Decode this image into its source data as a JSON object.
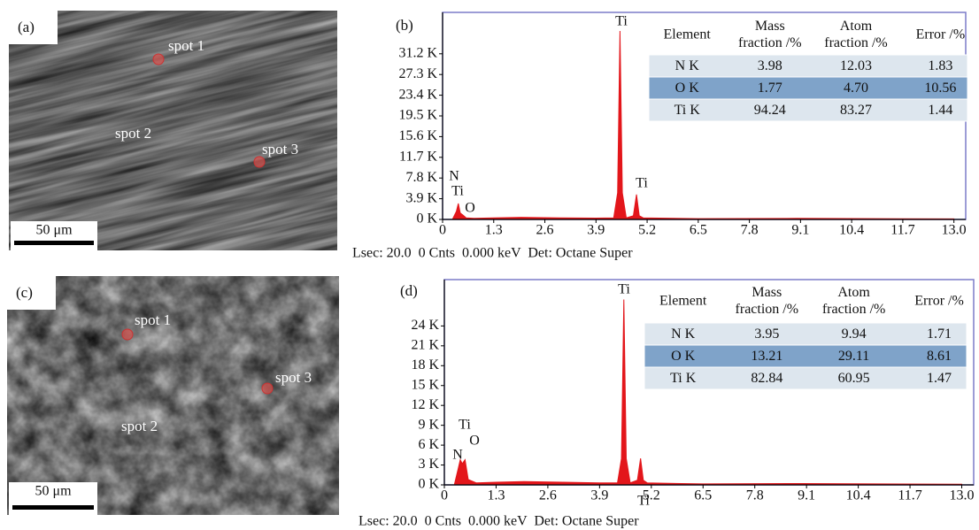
{
  "panels": [
    {
      "label": "(a)",
      "spots": [
        "spot 1",
        "spot 2",
        "spot 3"
      ],
      "scale_bar": "50 μm"
    },
    {
      "label": "(c)",
      "spots": [
        "spot 1",
        "spot 2",
        "spot 3"
      ],
      "scale_bar": "50 μm"
    }
  ],
  "chart_data": [
    {
      "type": "area",
      "label": "(b)",
      "x": [
        0,
        0.25,
        0.35,
        0.4,
        0.45,
        0.52,
        0.6,
        0.8,
        1.3,
        2,
        3,
        3.9,
        4.35,
        4.45,
        4.51,
        4.57,
        4.67,
        4.85,
        4.93,
        5.0,
        5.1,
        5.5,
        6.5,
        9,
        13
      ],
      "series": [
        {
          "color": "#e3161b",
          "values": [
            0,
            0,
            1500,
            3000,
            1200,
            800,
            300,
            200,
            300,
            400,
            300,
            250,
            300,
            5000,
            35500,
            5000,
            300,
            700,
            4700,
            700,
            300,
            250,
            150,
            200,
            100
          ]
        }
      ],
      "xlim": [
        0,
        13.3
      ],
      "xticks": [
        0,
        1.3,
        2.6,
        3.9,
        5.2,
        6.5,
        7.8,
        9.1,
        10.4,
        11.7,
        {
          "value": 13,
          "label": "13.0"
        }
      ],
      "ylim": [
        0,
        39000
      ],
      "yticks": [
        {
          "value": 0,
          "label": "0 K"
        },
        {
          "value": 3900,
          "label": "3.9 K"
        },
        {
          "value": 7800,
          "label": "7.8 K"
        },
        {
          "value": 11700,
          "label": "11.7 K"
        },
        {
          "value": 15600,
          "label": "15.6 K"
        },
        {
          "value": 19500,
          "label": "19.5 K"
        },
        {
          "value": 23400,
          "label": "23.4 K"
        },
        {
          "value": 27300,
          "label": "27.3 K"
        },
        {
          "value": 31200,
          "label": "31.2 K"
        }
      ],
      "peak_labels": [
        "N",
        "Ti",
        "O",
        "Ti",
        "Ti"
      ],
      "table": {
        "header": [
          [
            "Element"
          ],
          [
            "Mass",
            "fraction /%"
          ],
          [
            "Atom",
            "fraction /%"
          ],
          [
            "Error /%"
          ]
        ],
        "rows": [
          [
            "N K",
            "3.98",
            "12.03",
            "1.83"
          ],
          [
            "O K",
            "1.77",
            "4.70",
            "10.56"
          ],
          [
            "Ti K",
            "94.24",
            "83.27",
            "1.44"
          ]
        ]
      },
      "footer": "Lsec: 20.0  0 Cnts  0.000 keV  Det: Octane Super"
    },
    {
      "type": "area",
      "label": "(d)",
      "x": [
        0,
        0.25,
        0.35,
        0.4,
        0.45,
        0.52,
        0.6,
        0.8,
        1.3,
        2,
        3,
        3.9,
        4.35,
        4.45,
        4.51,
        4.57,
        4.67,
        4.85,
        4.93,
        5.0,
        5.1,
        5.5,
        6.5,
        9,
        13
      ],
      "series": [
        {
          "color": "#e3161b",
          "values": [
            0,
            0,
            2500,
            3800,
            3200,
            3800,
            800,
            300,
            400,
            500,
            400,
            300,
            300,
            4000,
            28000,
            4000,
            300,
            700,
            4000,
            700,
            300,
            250,
            150,
            200,
            100
          ]
        }
      ],
      "xlim": [
        0,
        13.3
      ],
      "xticks": [
        0,
        1.3,
        2.6,
        3.9,
        5.2,
        6.5,
        7.8,
        9.1,
        10.4,
        11.7,
        {
          "value": 13,
          "label": "13.0"
        }
      ],
      "ylim": [
        0,
        31000
      ],
      "yticks": [
        {
          "value": 0,
          "label": "0 K"
        },
        {
          "value": 3000,
          "label": "3 K"
        },
        {
          "value": 6000,
          "label": "6 K"
        },
        {
          "value": 9000,
          "label": "9 K"
        },
        {
          "value": 12000,
          "label": "12 K"
        },
        {
          "value": 15000,
          "label": "15 K"
        },
        {
          "value": 18000,
          "label": "18 K"
        },
        {
          "value": 21000,
          "label": "21 K"
        },
        {
          "value": 24000,
          "label": "24 K"
        }
      ],
      "peak_labels": [
        "Ti",
        "O",
        "N",
        "Ti",
        "Ti"
      ],
      "table": {
        "header": [
          [
            "Element"
          ],
          [
            "Mass",
            "fraction /%"
          ],
          [
            "Atom",
            "fraction /%"
          ],
          [
            "Error /%"
          ]
        ],
        "rows": [
          [
            "N K",
            "3.95",
            "9.94",
            "1.71"
          ],
          [
            "O K",
            "13.21",
            "29.11",
            "8.61"
          ],
          [
            "Ti K",
            "82.84",
            "60.95",
            "1.47"
          ]
        ]
      },
      "footer": "Lsec: 20.0  0 Cnts  0.000 keV  Det: Octane Super"
    }
  ]
}
